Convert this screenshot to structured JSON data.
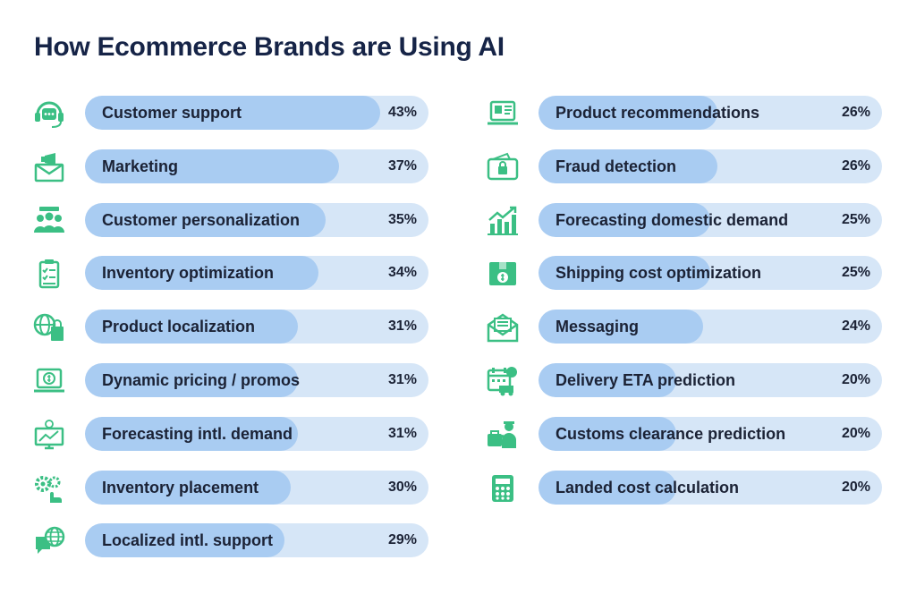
{
  "chart_data": {
    "type": "bar",
    "orientation": "horizontal",
    "title": "How Ecommerce Brands are Using AI",
    "xlim": [
      0,
      50
    ],
    "colors": {
      "track": "#d6e6f7",
      "fill": "#a9ccf2",
      "icon": "#3bbf84",
      "title": "#162447"
    },
    "columns": [
      {
        "items": [
          {
            "label": "Customer support",
            "value": 43,
            "value_label": "43%",
            "icon": "headset-icon"
          },
          {
            "label": "Marketing",
            "value": 37,
            "value_label": "37%",
            "icon": "megaphone-envelope-icon"
          },
          {
            "label": "Customer personalization",
            "value": 35,
            "value_label": "35%",
            "icon": "people-group-icon"
          },
          {
            "label": "Inventory optimization",
            "value": 34,
            "value_label": "34%",
            "icon": "clipboard-checklist-icon"
          },
          {
            "label": "Product localization",
            "value": 31,
            "value_label": "31%",
            "icon": "globe-bag-icon"
          },
          {
            "label": "Dynamic pricing / promos",
            "value": 31,
            "value_label": "31%",
            "icon": "laptop-dollar-icon"
          },
          {
            "label": "Forecasting intl. demand",
            "value": 31,
            "value_label": "31%",
            "icon": "monitor-chart-icon"
          },
          {
            "label": "Inventory placement",
            "value": 30,
            "value_label": "30%",
            "icon": "gears-hand-icon"
          },
          {
            "label": "Localized intl. support",
            "value": 29,
            "value_label": "29%",
            "icon": "chat-globe-icon"
          }
        ]
      },
      {
        "items": [
          {
            "label": "Product recommendations",
            "value": 26,
            "value_label": "26%",
            "icon": "laptop-product-icon"
          },
          {
            "label": "Fraud detection",
            "value": 26,
            "value_label": "26%",
            "icon": "wallet-lock-icon"
          },
          {
            "label": "Forecasting domestic demand",
            "value": 25,
            "value_label": "25%",
            "icon": "bar-chart-arrow-icon"
          },
          {
            "label": "Shipping cost optimization",
            "value": 25,
            "value_label": "25%",
            "icon": "box-dollar-icon"
          },
          {
            "label": "Messaging",
            "value": 24,
            "value_label": "24%",
            "icon": "envelope-letter-icon"
          },
          {
            "label": "Delivery ETA prediction",
            "value": 20,
            "value_label": "20%",
            "icon": "calendar-truck-icon"
          },
          {
            "label": "Customs clearance prediction",
            "value": 20,
            "value_label": "20%",
            "icon": "customs-officer-icon"
          },
          {
            "label": "Landed cost calculation",
            "value": 20,
            "value_label": "20%",
            "icon": "calculator-icon"
          }
        ]
      }
    ]
  }
}
